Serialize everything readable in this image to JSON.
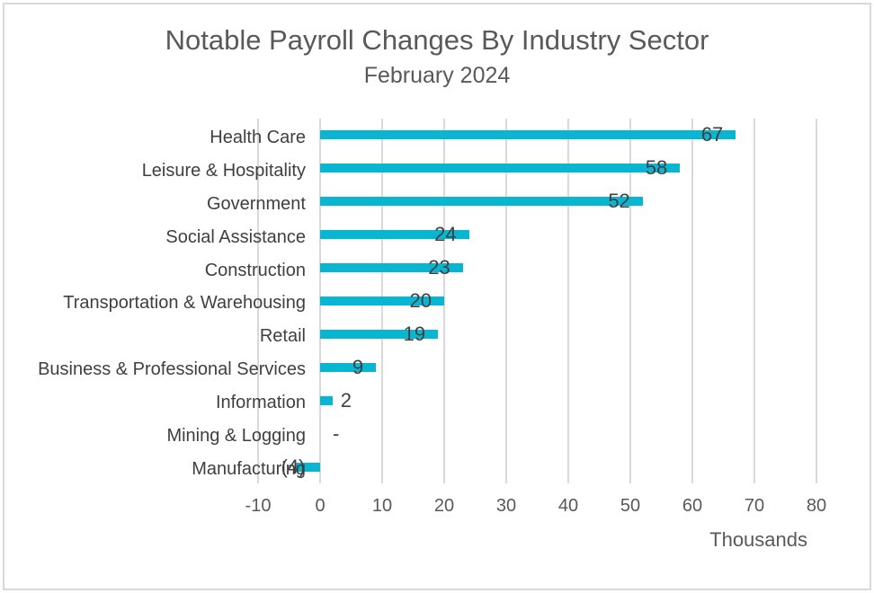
{
  "chart_data": {
    "type": "bar",
    "orientation": "horizontal",
    "title": "Notable Payroll Changes By Industry Sector",
    "subtitle": "February 2024",
    "categories": [
      "Health Care",
      "Leisure & Hospitality",
      "Government",
      "Social Assistance",
      "Construction",
      "Transportation & Warehousing",
      "Retail",
      "Business & Professional Services",
      "Information",
      "Mining & Logging",
      "Manufacturing"
    ],
    "values": [
      67,
      58,
      52,
      24,
      23,
      20,
      19,
      9,
      2,
      0,
      -4
    ],
    "data_labels": [
      "67",
      "58",
      "52",
      "24",
      "23",
      "20",
      "19",
      "9",
      "2",
      "-",
      "(4)"
    ],
    "xlabel": "Thousands",
    "x_ticks": [
      -10,
      0,
      10,
      20,
      30,
      40,
      50,
      60,
      70,
      80
    ],
    "xlim": [
      -10,
      80
    ],
    "grid": "vertical-only",
    "legend": "none",
    "bar_color": "#09b6d2",
    "gridline_color": "#d9d9d9",
    "title_color": "#595959",
    "label_color": "#3f3f3f"
  }
}
